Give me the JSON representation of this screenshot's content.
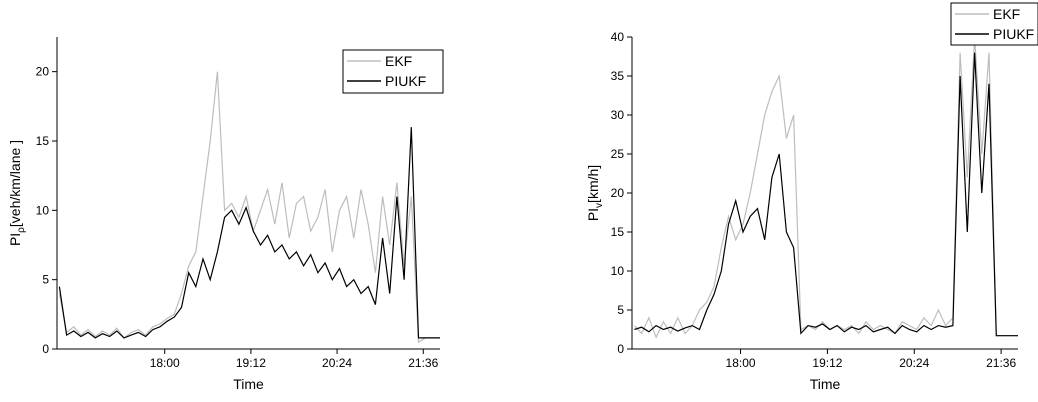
{
  "chart_data": [
    {
      "type": "line",
      "y_label": "PI",
      "y_label_sub": "ρ",
      "y_label_unit": "[veh/km/lane ]",
      "x_label": "Time",
      "x": [
        992,
        998,
        1004,
        1010,
        1016,
        1022,
        1028,
        1034,
        1040,
        1046,
        1052,
        1058,
        1064,
        1070,
        1076,
        1082,
        1088,
        1094,
        1100,
        1106,
        1112,
        1118,
        1124,
        1130,
        1136,
        1142,
        1148,
        1154,
        1160,
        1166,
        1172,
        1178,
        1184,
        1190,
        1196,
        1202,
        1208,
        1214,
        1220,
        1226,
        1232,
        1238,
        1244,
        1250,
        1256,
        1262,
        1268,
        1274,
        1280,
        1286,
        1292,
        1298,
        1304,
        1310
      ],
      "xlim": [
        990,
        1310
      ],
      "xticks": [
        {
          "value": 1080,
          "label": "18:00"
        },
        {
          "value": 1152,
          "label": "19:12"
        },
        {
          "value": 1224,
          "label": "20:24"
        },
        {
          "value": 1296,
          "label": "21:36"
        }
      ],
      "ylim": [
        0,
        22.5
      ],
      "yticks": [
        0,
        5,
        10,
        15,
        20
      ],
      "series": [
        {
          "name": "EKF",
          "color": "#bdbdbd",
          "values": [
            4,
            1.2,
            1.6,
            1,
            1.4,
            0.9,
            1.3,
            1,
            1.5,
            0.8,
            1.2,
            1.4,
            1,
            1.6,
            1.8,
            2.2,
            2.5,
            4,
            6,
            7,
            11,
            15,
            20,
            10,
            10.5,
            9.5,
            11,
            8.5,
            10,
            11.5,
            9,
            12,
            8,
            10.5,
            11,
            8.5,
            9.5,
            11.5,
            7,
            10,
            11,
            8,
            11.5,
            9,
            5.5,
            11,
            7.5,
            12,
            6,
            11,
            0.5,
            0.8,
            0.8,
            0.8
          ]
        },
        {
          "name": "PIUKF",
          "color": "#000000",
          "values": [
            4.5,
            1,
            1.3,
            0.9,
            1.2,
            0.8,
            1.1,
            0.9,
            1.3,
            0.8,
            1,
            1.2,
            0.9,
            1.4,
            1.6,
            2,
            2.3,
            3,
            5.5,
            4.5,
            6.5,
            5,
            7,
            9.5,
            10,
            9,
            10.2,
            8.5,
            7.5,
            8.2,
            7,
            7.5,
            6.5,
            7,
            6,
            6.8,
            5.5,
            6.2,
            5,
            5.8,
            4.5,
            5,
            4,
            4.5,
            3.2,
            8,
            4,
            11,
            5,
            16,
            0.8,
            0.8,
            0.8,
            0.8
          ]
        }
      ]
    },
    {
      "type": "line",
      "y_label": "PI",
      "y_label_sub": "v",
      "y_label_unit": "[km/h]",
      "x_label": "Time",
      "x": [
        992,
        998,
        1004,
        1010,
        1016,
        1022,
        1028,
        1034,
        1040,
        1046,
        1052,
        1058,
        1064,
        1070,
        1076,
        1082,
        1088,
        1094,
        1100,
        1106,
        1112,
        1118,
        1124,
        1130,
        1136,
        1142,
        1148,
        1154,
        1160,
        1166,
        1172,
        1178,
        1184,
        1190,
        1196,
        1202,
        1208,
        1214,
        1220,
        1226,
        1232,
        1238,
        1244,
        1250,
        1256,
        1262,
        1268,
        1274,
        1280,
        1286,
        1292,
        1298,
        1304,
        1310
      ],
      "xlim": [
        990,
        1310
      ],
      "xticks": [
        {
          "value": 1080,
          "label": "18:00"
        },
        {
          "value": 1152,
          "label": "19:12"
        },
        {
          "value": 1224,
          "label": "20:24"
        },
        {
          "value": 1296,
          "label": "21:36"
        }
      ],
      "ylim": [
        0,
        40
      ],
      "yticks": [
        0,
        5,
        10,
        15,
        20,
        25,
        30,
        35,
        40
      ],
      "series": [
        {
          "name": "EKF",
          "color": "#bdbdbd",
          "values": [
            3,
            2,
            4,
            1.5,
            3.5,
            2,
            4,
            2,
            3,
            5,
            6,
            8,
            13,
            17,
            14,
            16,
            20,
            25,
            30,
            33,
            35,
            27,
            30,
            2.5,
            3,
            2.5,
            3.5,
            2.5,
            3,
            2.5,
            3,
            2,
            3.5,
            2.5,
            3,
            2.5,
            2,
            3.5,
            3,
            2.5,
            4,
            3,
            5,
            3,
            4,
            38,
            22,
            40,
            25,
            38,
            1.7,
            1.7,
            1.7,
            1.7
          ]
        },
        {
          "name": "PIUKF",
          "color": "#000000",
          "values": [
            2.5,
            2.8,
            2.2,
            3,
            2.5,
            2.8,
            2.3,
            2.7,
            3,
            2.5,
            5,
            7,
            10,
            16,
            19,
            15,
            17,
            18,
            14,
            22,
            25,
            15,
            13,
            2,
            3,
            2.8,
            3.2,
            2.5,
            3,
            2.2,
            2.8,
            2.5,
            3,
            2.2,
            2.5,
            2.8,
            2,
            3,
            2.5,
            2.2,
            3,
            2.5,
            3,
            2.8,
            3,
            35,
            15,
            38,
            20,
            34,
            1.7,
            1.7,
            1.7,
            1.7
          ]
        }
      ]
    }
  ]
}
